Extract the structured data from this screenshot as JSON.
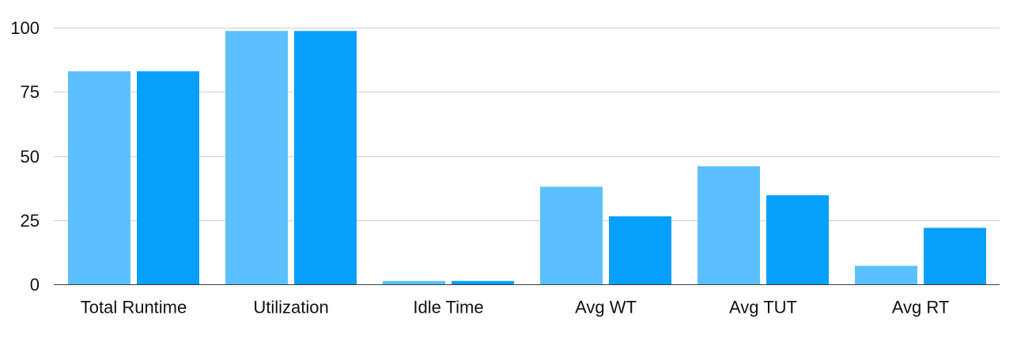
{
  "chart_data": {
    "type": "bar",
    "title": "",
    "xlabel": "",
    "ylabel": "",
    "categories": [
      "Total Runtime",
      "Utilization",
      "Idle Time",
      "Avg WT",
      "Avg TUT",
      "Avg RT"
    ],
    "series": [
      {
        "values": [
          83,
          98.7,
          1.3,
          38,
          46,
          7.2
        ],
        "color": "#5AC1FE"
      },
      {
        "values": [
          83,
          98.7,
          1.3,
          26.5,
          34.7,
          22
        ],
        "color": "#04A0FC"
      }
    ],
    "ylim": [
      0,
      100
    ],
    "yticks": [
      "0",
      "25",
      "50",
      "75",
      "100"
    ],
    "grid": true,
    "legend": "none"
  }
}
